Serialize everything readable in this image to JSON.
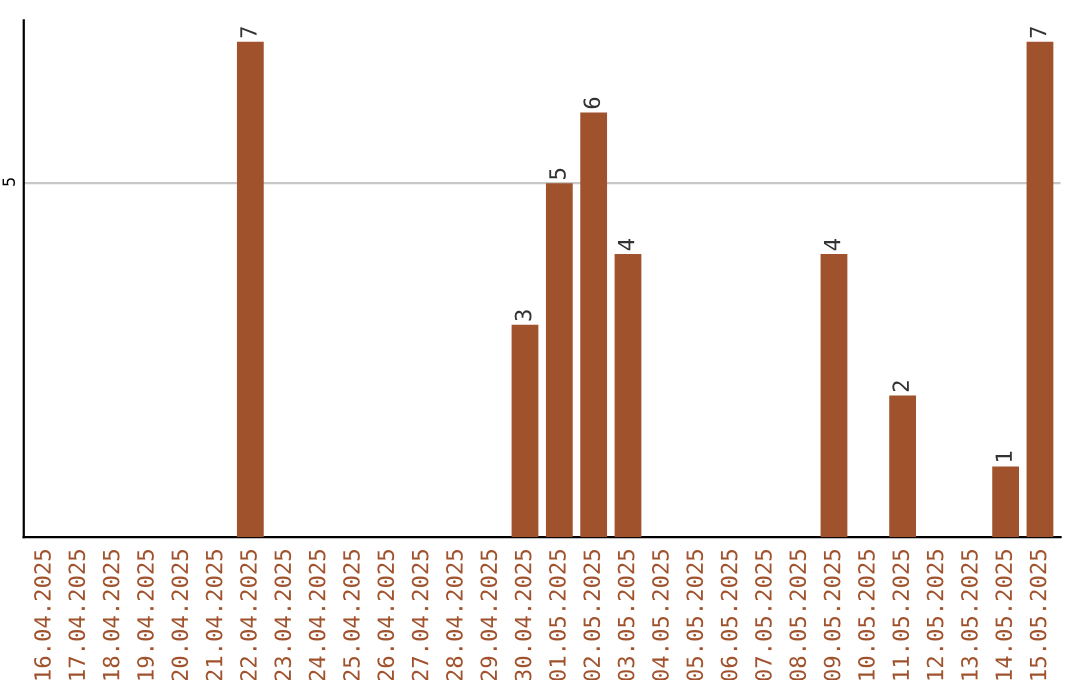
{
  "chart_data": {
    "type": "bar",
    "categories": [
      "16.04.2025",
      "17.04.2025",
      "18.04.2025",
      "19.04.2025",
      "20.04.2025",
      "21.04.2025",
      "22.04.2025",
      "23.04.2025",
      "24.04.2025",
      "25.04.2025",
      "26.04.2025",
      "27.04.2025",
      "28.04.2025",
      "29.04.2025",
      "30.04.2025",
      "01.05.2025",
      "02.05.2025",
      "03.05.2025",
      "04.05.2025",
      "05.05.2025",
      "06.05.2025",
      "07.05.2025",
      "08.05.2025",
      "09.05.2025",
      "10.05.2025",
      "11.05.2025",
      "12.05.2025",
      "13.05.2025",
      "14.05.2025",
      "15.05.2025"
    ],
    "values": [
      0,
      0,
      0,
      0,
      0,
      0,
      7,
      0,
      0,
      0,
      0,
      0,
      0,
      0,
      3,
      5,
      6,
      4,
      0,
      0,
      0,
      0,
      0,
      4,
      0,
      2,
      0,
      0,
      1,
      7
    ],
    "value_labels": [
      null,
      null,
      null,
      null,
      null,
      null,
      "7",
      null,
      null,
      null,
      null,
      null,
      null,
      null,
      "3",
      "5",
      "6",
      "4",
      null,
      null,
      null,
      null,
      null,
      "4",
      null,
      "2",
      null,
      null,
      "1",
      "7"
    ],
    "color": "#a0522d",
    "ylim": [
      0,
      7.3
    ],
    "yticks": [
      5
    ],
    "grid": "y"
  }
}
